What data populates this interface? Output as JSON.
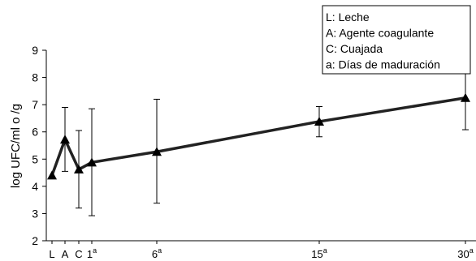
{
  "chart_data": {
    "type": "line",
    "ylabel": "log UFC/ml o /g",
    "ylim": [
      2,
      9
    ],
    "yticks": [
      2,
      3,
      4,
      5,
      6,
      7,
      8,
      9
    ],
    "grid": false,
    "legend_position": "top-right",
    "legend_entries": [
      "L: Leche",
      "A: Agente coagulante",
      "C: Cuajada",
      "a: Días de maduración"
    ],
    "x_labels": [
      {
        "base": "L",
        "sup": ""
      },
      {
        "base": "A",
        "sup": ""
      },
      {
        "base": "C",
        "sup": ""
      },
      {
        "base": "1",
        "sup": "a"
      },
      {
        "base": "6",
        "sup": "a"
      },
      {
        "base": "15",
        "sup": "a"
      },
      {
        "base": "30",
        "sup": "a"
      }
    ],
    "series": [
      {
        "values": [
          4.4,
          5.72,
          4.62,
          4.88,
          5.27,
          6.38,
          7.25
        ],
        "error_low": [
          4.4,
          4.55,
          3.2,
          2.92,
          3.38,
          5.82,
          6.08
        ],
        "error_high": [
          4.4,
          6.9,
          6.05,
          6.85,
          7.2,
          6.93,
          8.4
        ]
      }
    ]
  }
}
